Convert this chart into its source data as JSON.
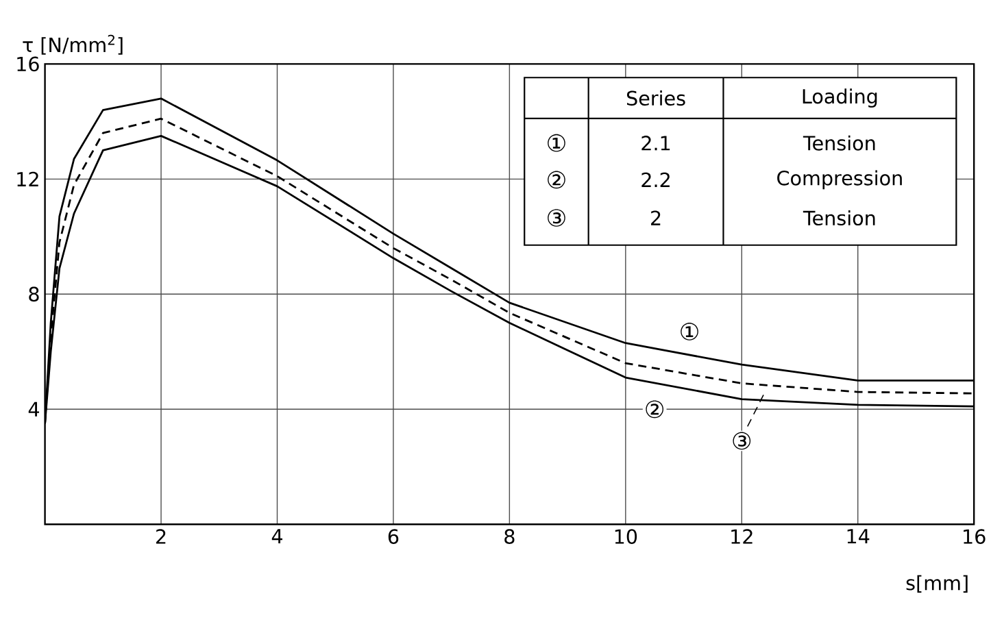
{
  "chart_data": {
    "type": "line",
    "xlabel": "s[mm]",
    "ylabel": "τ [N/mm$^{2}$]",
    "x": [
      0,
      0.1,
      0.25,
      0.5,
      1,
      2,
      4,
      6,
      7,
      8,
      10,
      12,
      14,
      16
    ],
    "series": [
      {
        "name": "①",
        "color": "#000000",
        "line_style": "solid",
        "values": [
          3.5,
          7,
          10.7,
          12.7,
          14.4,
          14.8,
          12.65,
          10.1,
          8.9,
          7.7,
          6.3,
          5.55,
          5.0,
          5.0
        ]
      },
      {
        "name": "②",
        "color": "#000000",
        "line_style": "solid",
        "values": [
          3.5,
          6,
          8.9,
          10.8,
          13.0,
          13.5,
          11.75,
          9.25,
          8.1,
          7.0,
          5.1,
          4.35,
          4.15,
          4.1
        ]
      },
      {
        "name": "③",
        "color": "#000000",
        "line_style": "dashed",
        "values": [
          3.5,
          6.5,
          9.8,
          11.8,
          13.6,
          14.1,
          12.1,
          9.6,
          8.5,
          7.35,
          5.6,
          4.9,
          4.6,
          4.55
        ]
      }
    ],
    "xlim": [
      0,
      16
    ],
    "ylim": [
      0,
      16
    ],
    "xticks": [
      2,
      4,
      6,
      8,
      10,
      12,
      14,
      16
    ],
    "yticks": [
      4,
      8,
      12,
      16
    ],
    "grid": true,
    "annotations": [
      "Series",
      "Loading",
      "2.1",
      "Tension",
      "2.2",
      "Compression",
      "2",
      "Tension"
    ]
  }
}
